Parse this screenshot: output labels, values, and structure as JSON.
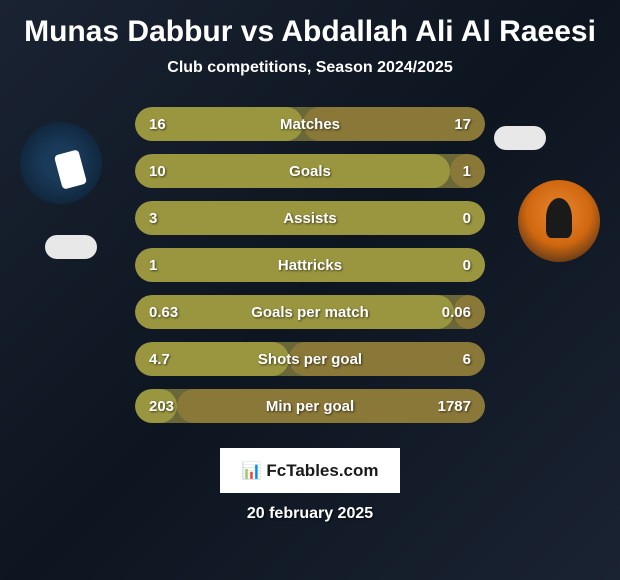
{
  "title": {
    "player1": "Munas Dabbur",
    "vs": "vs",
    "player2": "Abdallah Ali Al Raeesi"
  },
  "subtitle": "Club competitions, Season 2024/2025",
  "logo_text": "FcTables.com",
  "date": "20 february 2025",
  "colors": {
    "bar_left": "#9a9640",
    "bar_right": "#8a7838",
    "bar_bg": "#6a6838"
  },
  "stats": [
    {
      "label": "Matches",
      "left_val": "16",
      "right_val": "17",
      "left_pct": 48,
      "right_pct": 52
    },
    {
      "label": "Goals",
      "left_val": "10",
      "right_val": "1",
      "left_pct": 90,
      "right_pct": 10
    },
    {
      "label": "Assists",
      "left_val": "3",
      "right_val": "0",
      "left_pct": 100,
      "right_pct": 3
    },
    {
      "label": "Hattricks",
      "left_val": "1",
      "right_val": "0",
      "left_pct": 100,
      "right_pct": 3
    },
    {
      "label": "Goals per match",
      "left_val": "0.63",
      "right_val": "0.06",
      "left_pct": 91,
      "right_pct": 9
    },
    {
      "label": "Shots per goal",
      "left_val": "4.7",
      "right_val": "6",
      "left_pct": 44,
      "right_pct": 56
    },
    {
      "label": "Min per goal",
      "left_val": "203",
      "right_val": "1787",
      "left_pct": 12,
      "right_pct": 88
    }
  ]
}
